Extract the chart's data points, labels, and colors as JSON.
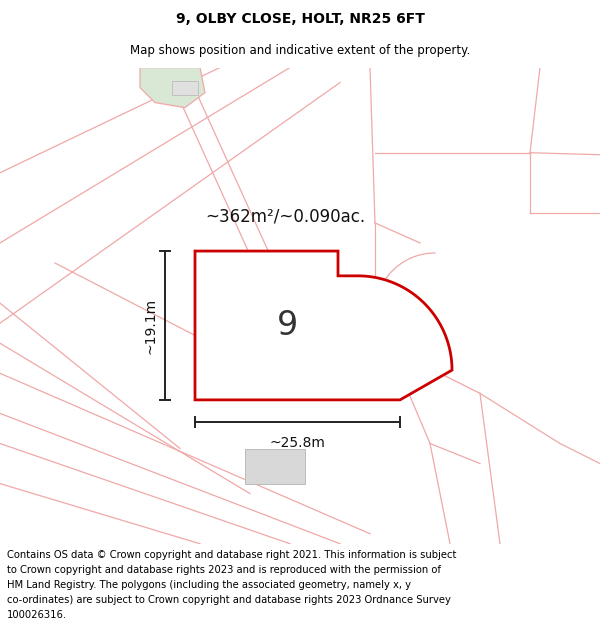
{
  "title": "9, OLBY CLOSE, HOLT, NR25 6FT",
  "subtitle": "Map shows position and indicative extent of the property.",
  "area_label": "~362m²/~0.090ac.",
  "plot_number": "9",
  "width_label": "~25.8m",
  "height_label": "~19.1m",
  "title_fontsize": 10,
  "subtitle_fontsize": 8.5,
  "background_color": "#ffffff",
  "plot_fill": "#ffffff",
  "plot_edge": "#cc0000",
  "pink": "#f0a8a8",
  "green_patch_color": "#d8e8d4",
  "footer_text": "Contains OS data © Crown copyright and database right 2021. This information is subject to Crown copyright and database rights 2023 and is reproduced with the permission of HM Land Registry. The polygons (including the associated geometry, namely x, y co-ordinates) are subject to Crown copyright and database rights 2023 Ordnance Survey 100026316.",
  "footer_fontsize": 7.2
}
